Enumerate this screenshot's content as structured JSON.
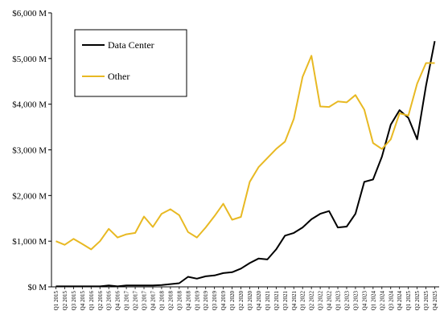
{
  "chart_data": {
    "type": "line",
    "title": "",
    "xlabel": "",
    "ylabel": "",
    "ylim": [
      0,
      6000
    ],
    "yticks": [
      "$0 M",
      "$1,000 M",
      "$2,000 M",
      "$3,000 M",
      "$4,000 M",
      "$5,000 M",
      "$6,000 M"
    ],
    "ytick_values": [
      0,
      1000,
      2000,
      3000,
      4000,
      5000,
      6000
    ],
    "grid": false,
    "legend_position": "top-left",
    "x": [
      "Q1 2015",
      "Q2 2015",
      "Q3 2015",
      "Q4 2015",
      "Q1 2016",
      "Q2 2016",
      "Q3 2016",
      "Q4 2016",
      "Q1 2017",
      "Q2 2017",
      "Q3 2017",
      "Q4 2017",
      "Q1 2018",
      "Q2 2018",
      "Q3 2018",
      "Q4 2018",
      "Q1 2019",
      "Q2 2019",
      "Q3 2019",
      "Q4 2019",
      "Q1 2020",
      "Q2 2020",
      "Q3 2020",
      "Q4 2020",
      "Q1 2021",
      "Q2 2021",
      "Q3 2021",
      "Q4 2021",
      "Q1 2022",
      "Q2 2022",
      "Q3 2022",
      "Q4 2022",
      "Q1 2023",
      "Q2 2023",
      "Q3 2023",
      "Q4 2023",
      "Q1 2024",
      "Q2 2024",
      "Q3 2024",
      "Q4 2024",
      "Q1 2025",
      "Q2 2025",
      "Q3 2025",
      "Q4 2025"
    ],
    "series": [
      {
        "name": "Data Center",
        "color": "#000000",
        "values": [
          10,
          10,
          10,
          10,
          10,
          10,
          30,
          10,
          30,
          30,
          30,
          30,
          40,
          60,
          80,
          220,
          180,
          230,
          250,
          300,
          320,
          400,
          520,
          620,
          600,
          820,
          1120,
          1180,
          1300,
          1480,
          1600,
          1660,
          1300,
          1320,
          1600,
          2300,
          2350,
          2850,
          3550,
          3870,
          3700,
          3230,
          4400,
          5380
        ]
      },
      {
        "name": "Other",
        "color": "#e8b923",
        "values": [
          1000,
          920,
          1050,
          940,
          820,
          1000,
          1270,
          1080,
          1150,
          1180,
          1540,
          1310,
          1600,
          1700,
          1570,
          1200,
          1080,
          1300,
          1550,
          1820,
          1470,
          1530,
          2300,
          2620,
          2820,
          3020,
          3180,
          3680,
          4600,
          5060,
          3950,
          3940,
          4060,
          4040,
          4200,
          3880,
          3150,
          3020,
          3230,
          3800,
          3750,
          4450,
          4900,
          4900
        ]
      }
    ]
  }
}
